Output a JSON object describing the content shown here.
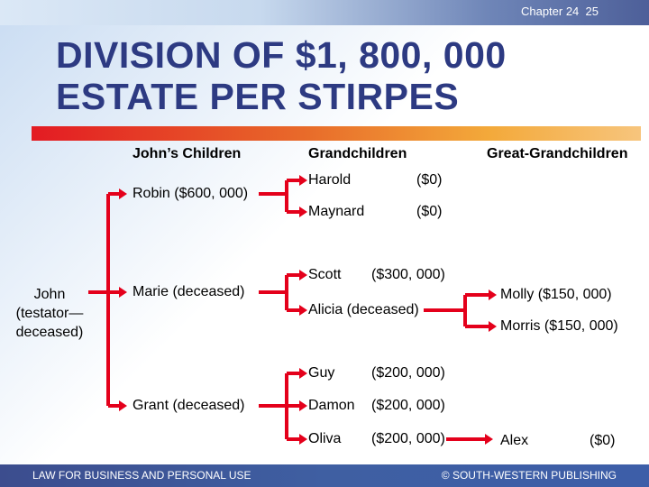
{
  "header": {
    "chapter": "Chapter 24",
    "page": "25"
  },
  "title": {
    "line1": "DIVISION OF $1, 800, 000",
    "line2": "ESTATE PER STIRPES"
  },
  "columns": {
    "children": "John’s Children",
    "grandchildren": "Grandchildren",
    "great_grandchildren": "Great-Grandchildren"
  },
  "testator": {
    "line1": "John",
    "line2": "(testator—",
    "line3": "deceased)"
  },
  "children": {
    "robin": "Robin  ($600, 000)",
    "marie": "Marie (deceased)",
    "grant": "Grant (deceased)"
  },
  "grandchildren": {
    "harold": {
      "name": "Harold",
      "amount": "($0)"
    },
    "maynard": {
      "name": "Maynard",
      "amount": "($0)"
    },
    "scott": {
      "name": "Scott",
      "amount": "($300, 000)"
    },
    "alicia": {
      "name": "Alicia (deceased)"
    },
    "guy": {
      "name": "Guy",
      "amount": "($200, 000)"
    },
    "damon": {
      "name": "Damon",
      "amount": "($200, 000)"
    },
    "oliva": {
      "name": "Oliva",
      "amount": "($200, 000)"
    }
  },
  "great_grandchildren": {
    "molly": "Molly  ($150, 000)",
    "morris": "Morris  ($150, 000)",
    "alex": {
      "name": "Alex",
      "amount": "($0)"
    }
  },
  "footer": {
    "left": "LAW FOR BUSINESS AND PERSONAL USE",
    "right": "© SOUTH-WESTERN PUBLISHING"
  },
  "colors": {
    "connector": "#e4001b",
    "title": "#2d3a82",
    "banner": "#3c4d8e"
  }
}
